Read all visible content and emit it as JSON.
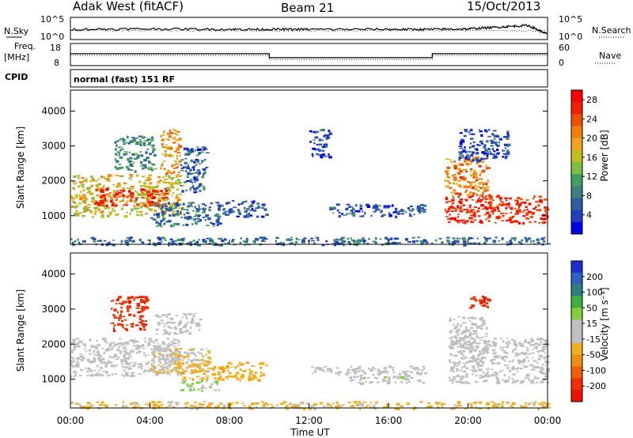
{
  "header": {
    "station": "Adak West (fitACF)",
    "beam": "Beam 21",
    "date": "15/Oct/2013"
  },
  "panels": {
    "noise": {
      "left_label": "N.Sky",
      "right_label": "N.Search",
      "left_ticks": [
        "10^5",
        "10^0"
      ],
      "right_ticks": [
        "10^5",
        "10^0"
      ]
    },
    "freq": {
      "left_label_top": "Freq.",
      "left_label_bottom": "[MHz]",
      "right_label": "Nave",
      "left_ticks": [
        "18",
        "8"
      ],
      "right_ticks": [
        "60",
        "0"
      ]
    },
    "cpid": {
      "label": "CPID",
      "text": "normal (fast) 151 RF"
    }
  },
  "colors": {
    "power_scale": [
      "#0000e6",
      "#1f3fbf",
      "#2f5f9f",
      "#3f7f7f",
      "#3f9f5f",
      "#7fbf3f",
      "#bfbf1f",
      "#efa31f",
      "#ef7f0f",
      "#ef4f00",
      "#ee2200",
      "#ff0000"
    ],
    "velocity_scale": [
      "#1f2fcf",
      "#2f5fbf",
      "#2f7f7f",
      "#3faf3f",
      "#7fcf3f",
      "#bfbfbf",
      "#bfbfbf",
      "#efaf1f",
      "#ef8f0f",
      "#ef5f00",
      "#ef2f00",
      "#ee1100"
    ],
    "gray": "#c0c0c0"
  },
  "chart_data": [
    {
      "type": "heatmap",
      "name": "power",
      "ylabel": "Slant Range [km]",
      "yticks": [
        1000,
        2000,
        3000,
        4000
      ],
      "ylim": [
        180,
        4600
      ],
      "xlim": [
        0,
        24
      ],
      "xticks": [
        "00:00",
        "04:00",
        "08:00",
        "12:00",
        "16:00",
        "20:00",
        "00:00"
      ],
      "colorbar": {
        "label": "Power [dB]",
        "ticks": [
          4,
          8,
          12,
          16,
          20,
          24,
          28
        ],
        "range": [
          0,
          30
        ]
      },
      "regions": [
        {
          "t0": 0.0,
          "t1": 5.6,
          "r0": 1000,
          "r1": 2200,
          "value": 17
        },
        {
          "t0": 1.2,
          "t1": 4.8,
          "r0": 1300,
          "r1": 1800,
          "value": 26
        },
        {
          "t0": 4.0,
          "t1": 7.5,
          "r0": 700,
          "r1": 1400,
          "value": 7
        },
        {
          "t0": 7.5,
          "t1": 9.8,
          "r0": 1000,
          "r1": 1450,
          "value": 5
        },
        {
          "t0": 2.2,
          "t1": 4.2,
          "r0": 2300,
          "r1": 3300,
          "value": 10
        },
        {
          "t0": 4.5,
          "t1": 5.5,
          "r0": 2200,
          "r1": 3500,
          "value": 20
        },
        {
          "t0": 5.5,
          "t1": 6.8,
          "r0": 1700,
          "r1": 3000,
          "value": 6
        },
        {
          "t0": 13.0,
          "t1": 17.8,
          "r0": 1000,
          "r1": 1350,
          "value": 6
        },
        {
          "t0": 12.0,
          "t1": 13.0,
          "r0": 2700,
          "r1": 3500,
          "value": 4
        },
        {
          "t0": 18.8,
          "t1": 24.0,
          "r0": 800,
          "r1": 1600,
          "value": 27
        },
        {
          "t0": 18.8,
          "t1": 21.0,
          "r0": 1600,
          "r1": 2700,
          "value": 21
        },
        {
          "t0": 19.5,
          "t1": 22.0,
          "r0": 2600,
          "r1": 3500,
          "value": 5
        },
        {
          "t0": 0.0,
          "t1": 24.0,
          "r0": 180,
          "r1": 400,
          "value": 7
        }
      ]
    },
    {
      "type": "heatmap",
      "name": "velocity",
      "ylabel": "Slant Range [km]",
      "yticks": [
        1000,
        2000,
        3000,
        4000
      ],
      "ylim": [
        180,
        4600
      ],
      "xlim": [
        0,
        24
      ],
      "xticks": [
        "00:00",
        "04:00",
        "08:00",
        "12:00",
        "16:00",
        "20:00",
        "00:00"
      ],
      "xlabel": "Time UT",
      "colorbar": {
        "label": "Velocity [m s⁻¹]",
        "ticks": [
          200,
          100,
          50,
          15,
          -15,
          -50,
          -100,
          -200
        ],
        "range": [
          -250,
          250
        ]
      },
      "regions": [
        {
          "t0": 0.0,
          "t1": 5.5,
          "r0": 1100,
          "r1": 2200,
          "value": 0
        },
        {
          "t0": 4.0,
          "t1": 7.0,
          "r0": 1200,
          "r1": 1900,
          "value": -40
        },
        {
          "t0": 5.5,
          "t1": 9.8,
          "r0": 1000,
          "r1": 1500,
          "value": -70
        },
        {
          "t0": 5.5,
          "t1": 7.5,
          "r0": 700,
          "r1": 1000,
          "value": 40
        },
        {
          "t0": 2.0,
          "t1": 3.8,
          "r0": 2400,
          "r1": 3400,
          "value": -200
        },
        {
          "t0": 4.2,
          "t1": 6.5,
          "r0": 2300,
          "r1": 2900,
          "value": 0
        },
        {
          "t0": 12.0,
          "t1": 17.8,
          "r0": 1150,
          "r1": 1400,
          "value": 0
        },
        {
          "t0": 14.0,
          "t1": 17.8,
          "r0": 900,
          "r1": 1150,
          "value": 30
        },
        {
          "t0": 19.0,
          "t1": 24.0,
          "r0": 900,
          "r1": 2200,
          "value": 0
        },
        {
          "t0": 19.0,
          "t1": 21.0,
          "r0": 1900,
          "r1": 2800,
          "value": 25
        },
        {
          "t0": 20.0,
          "t1": 21.0,
          "r0": 3000,
          "r1": 3400,
          "value": -200
        },
        {
          "t0": 0.0,
          "t1": 24.0,
          "r0": 180,
          "r1": 380,
          "value": -50
        }
      ]
    },
    {
      "type": "line",
      "name": "noise",
      "ylim": [
        0,
        5
      ],
      "x": [
        0,
        4,
        8,
        10,
        12,
        16,
        18,
        20,
        21.5,
        23,
        24
      ],
      "values": [
        2.3,
        2.4,
        2.3,
        2.3,
        2.3,
        2.3,
        2.3,
        2.4,
        2.8,
        3.2,
        1.2
      ]
    },
    {
      "type": "line",
      "name": "frequency",
      "ylim": [
        8,
        18
      ],
      "x": [
        0,
        10.0,
        10.0,
        18.2,
        18.2,
        24
      ],
      "values": [
        13.4,
        13.4,
        11.6,
        11.6,
        13.4,
        13.4
      ]
    }
  ],
  "xaxis": {
    "label": "Time UT",
    "ticks": [
      "00:00",
      "04:00",
      "08:00",
      "12:00",
      "16:00",
      "20:00",
      "00:00"
    ]
  }
}
